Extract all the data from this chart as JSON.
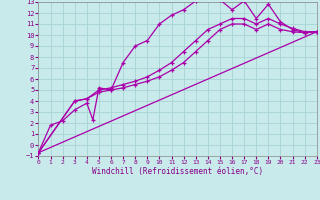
{
  "xlabel": "Windchill (Refroidissement éolien,°C)",
  "bg_color": "#c8eaea",
  "grid_color": "#a8d4d4",
  "line_color": "#aa00aa",
  "xlim": [
    0,
    23
  ],
  "ylim": [
    -1,
    13
  ],
  "xticks": [
    0,
    1,
    2,
    3,
    4,
    5,
    6,
    7,
    8,
    9,
    10,
    11,
    12,
    13,
    14,
    15,
    16,
    17,
    18,
    19,
    20,
    21,
    22,
    23
  ],
  "yticks": [
    -1,
    0,
    1,
    2,
    3,
    4,
    5,
    6,
    7,
    8,
    9,
    10,
    11,
    12,
    13
  ],
  "curve1_x": [
    0,
    1,
    2,
    3,
    4,
    4.5,
    5,
    6,
    7,
    8,
    9,
    10,
    11,
    12,
    13,
    14,
    15,
    16,
    17,
    18,
    19,
    20,
    21,
    22,
    23
  ],
  "curve1_y": [
    -0.7,
    1.8,
    2.2,
    3.2,
    3.8,
    2.3,
    5.2,
    5.0,
    7.5,
    9.0,
    9.5,
    11.0,
    11.8,
    12.3,
    13.1,
    13.3,
    13.2,
    12.3,
    13.1,
    11.5,
    12.8,
    11.2,
    10.5,
    10.2,
    10.3
  ],
  "curve2_x": [
    0,
    3,
    4,
    5,
    6,
    7,
    8,
    9,
    10,
    11,
    12,
    13,
    14,
    15,
    16,
    17,
    18,
    19,
    20,
    21,
    22,
    23
  ],
  "curve2_y": [
    -0.7,
    4.0,
    4.2,
    5.0,
    5.2,
    5.5,
    5.8,
    6.2,
    6.8,
    7.5,
    8.5,
    9.5,
    10.5,
    11.0,
    11.5,
    11.5,
    11.0,
    11.5,
    11.0,
    10.6,
    10.3,
    10.3
  ],
  "curve3_x": [
    0,
    3,
    4,
    5,
    6,
    7,
    8,
    9,
    10,
    11,
    12,
    13,
    14,
    15,
    16,
    17,
    18,
    19,
    20,
    21,
    22,
    23
  ],
  "curve3_y": [
    -0.7,
    4.0,
    4.2,
    4.8,
    5.0,
    5.2,
    5.5,
    5.8,
    6.2,
    6.8,
    7.5,
    8.5,
    9.5,
    10.5,
    11.0,
    11.0,
    10.5,
    11.0,
    10.5,
    10.3,
    10.2,
    10.3
  ],
  "curve4_x": [
    0,
    23
  ],
  "curve4_y": [
    -0.7,
    10.3
  ]
}
